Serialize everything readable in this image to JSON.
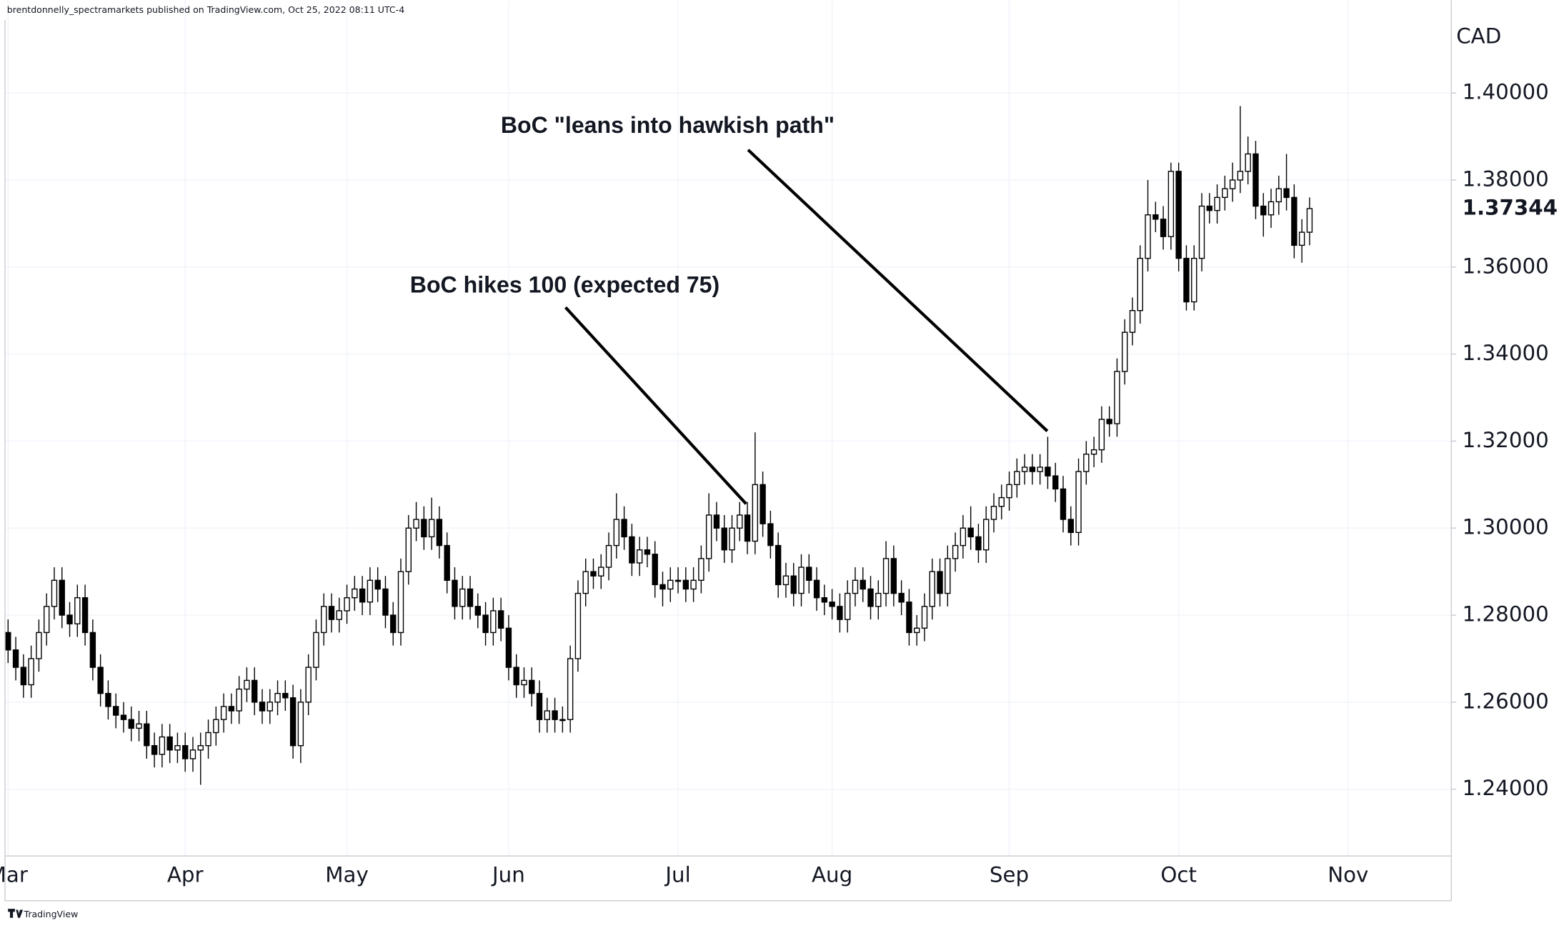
{
  "chart_data": {
    "type": "candlestick",
    "header": "brentdonnelly_spectramarkets published on TradingView.com, Oct 25, 2022 08:11 UTC-4",
    "footer": "TradingView",
    "currency_label": "CAD",
    "annotations": [
      "BoC hikes 100 (expected 75)",
      "BoC \"leans into hawkish path\""
    ],
    "up_color": "#ffffff",
    "down_color": "#000000",
    "grid": true,
    "xlim": [
      -0.4,
      187.4
    ],
    "xticks": [
      {
        "value": 0,
        "label": "Mar"
      },
      {
        "value": 23,
        "label": "Apr"
      },
      {
        "value": 44,
        "label": "May"
      },
      {
        "value": 65,
        "label": "Jun"
      },
      {
        "value": 87,
        "label": "Jul"
      },
      {
        "value": 107,
        "label": "Aug"
      },
      {
        "value": 130,
        "label": "Sep"
      },
      {
        "value": 152,
        "label": "Oct"
      },
      {
        "value": 174,
        "label": "Nov"
      }
    ],
    "ylim": [
      1.22465,
      1.42132
    ],
    "yticks": [
      {
        "value": 1.24,
        "label": "1.24000"
      },
      {
        "value": 1.26,
        "label": "1.26000"
      },
      {
        "value": 1.28,
        "label": "1.28000"
      },
      {
        "value": 1.3,
        "label": "1.30000"
      },
      {
        "value": 1.32,
        "label": "1.32000"
      },
      {
        "value": 1.34,
        "label": "1.34000"
      },
      {
        "value": 1.36,
        "label": "1.36000"
      },
      {
        "value": 1.38,
        "label": "1.38000"
      },
      {
        "value": 1.4,
        "label": "1.40000"
      }
    ],
    "last_price": 1.37344,
    "open": [
      1.276,
      1.272,
      1.268,
      1.264,
      1.27,
      1.276,
      1.282,
      1.288,
      1.28,
      1.278,
      1.284,
      1.276,
      1.268,
      1.262,
      1.259,
      1.257,
      1.256,
      1.254,
      1.255,
      1.25,
      1.248,
      1.252,
      1.249,
      1.25,
      1.247,
      1.249,
      1.25,
      1.253,
      1.256,
      1.259,
      1.258,
      1.263,
      1.265,
      1.26,
      1.258,
      1.26,
      1.262,
      1.261,
      1.25,
      1.26,
      1.268,
      1.276,
      1.282,
      1.279,
      1.281,
      1.284,
      1.286,
      1.283,
      1.288,
      1.286,
      1.28,
      1.276,
      1.29,
      1.3,
      1.302,
      1.298,
      1.302,
      1.296,
      1.288,
      1.282,
      1.286,
      1.282,
      1.28,
      1.276,
      1.281,
      1.277,
      1.268,
      1.264,
      1.265,
      1.262,
      1.256,
      1.258,
      1.256,
      1.256,
      1.27,
      1.285,
      1.29,
      1.289,
      1.291,
      1.296,
      1.302,
      1.298,
      1.292,
      1.295,
      1.294,
      1.287,
      1.286,
      1.288,
      1.288,
      1.286,
      1.288,
      1.293,
      1.303,
      1.3,
      1.295,
      1.3,
      1.303,
      1.297,
      1.31,
      1.301,
      1.296,
      1.287,
      1.289,
      1.285,
      1.291,
      1.288,
      1.284,
      1.283,
      1.282,
      1.279,
      1.285,
      1.288,
      1.286,
      1.282,
      1.285,
      1.293,
      1.285,
      1.283,
      1.276,
      1.277,
      1.282,
      1.29,
      1.285,
      1.293,
      1.296,
      1.3,
      1.298,
      1.295,
      1.302,
      1.305,
      1.307,
      1.31,
      1.313,
      1.314,
      1.313,
      1.314,
      1.312,
      1.309,
      1.302,
      1.299,
      1.313,
      1.317,
      1.318,
      1.325,
      1.324,
      1.336,
      1.345,
      1.35,
      1.362,
      1.372,
      1.371,
      1.367,
      1.382,
      1.362,
      1.352,
      1.362,
      1.374,
      1.373,
      1.376,
      1.378,
      1.38,
      1.382,
      1.386,
      1.374,
      1.372,
      1.375,
      1.378,
      1.376,
      1.365,
      1.368
    ],
    "high": [
      1.279,
      1.275,
      1.271,
      1.273,
      1.279,
      1.285,
      1.291,
      1.291,
      1.283,
      1.287,
      1.287,
      1.279,
      1.271,
      1.265,
      1.262,
      1.26,
      1.259,
      1.258,
      1.258,
      1.253,
      1.255,
      1.255,
      1.253,
      1.253,
      1.252,
      1.253,
      1.256,
      1.259,
      1.262,
      1.262,
      1.266,
      1.268,
      1.268,
      1.263,
      1.263,
      1.265,
      1.265,
      1.264,
      1.263,
      1.271,
      1.279,
      1.285,
      1.285,
      1.284,
      1.287,
      1.289,
      1.289,
      1.291,
      1.291,
      1.289,
      1.283,
      1.293,
      1.303,
      1.306,
      1.305,
      1.307,
      1.305,
      1.299,
      1.291,
      1.289,
      1.289,
      1.285,
      1.283,
      1.284,
      1.284,
      1.28,
      1.271,
      1.268,
      1.268,
      1.265,
      1.261,
      1.261,
      1.259,
      1.273,
      1.288,
      1.293,
      1.293,
      1.294,
      1.299,
      1.308,
      1.305,
      1.301,
      1.298,
      1.298,
      1.297,
      1.29,
      1.291,
      1.291,
      1.291,
      1.291,
      1.296,
      1.308,
      1.306,
      1.303,
      1.303,
      1.306,
      1.306,
      1.322,
      1.313,
      1.304,
      1.299,
      1.292,
      1.292,
      1.294,
      1.294,
      1.291,
      1.287,
      1.286,
      1.285,
      1.288,
      1.291,
      1.291,
      1.289,
      1.288,
      1.297,
      1.296,
      1.288,
      1.286,
      1.28,
      1.285,
      1.293,
      1.293,
      1.296,
      1.299,
      1.303,
      1.305,
      1.301,
      1.305,
      1.308,
      1.31,
      1.313,
      1.316,
      1.317,
      1.317,
      1.317,
      1.321,
      1.315,
      1.312,
      1.305,
      1.316,
      1.32,
      1.321,
      1.328,
      1.328,
      1.339,
      1.348,
      1.353,
      1.365,
      1.38,
      1.375,
      1.374,
      1.384,
      1.384,
      1.365,
      1.365,
      1.377,
      1.377,
      1.379,
      1.381,
      1.384,
      1.397,
      1.39,
      1.389,
      1.377,
      1.378,
      1.381,
      1.386,
      1.379,
      1.371,
      1.376
    ],
    "low": [
      1.269,
      1.265,
      1.261,
      1.261,
      1.267,
      1.273,
      1.279,
      1.277,
      1.275,
      1.275,
      1.273,
      1.265,
      1.259,
      1.256,
      1.254,
      1.253,
      1.251,
      1.251,
      1.247,
      1.245,
      1.245,
      1.246,
      1.246,
      1.244,
      1.244,
      1.241,
      1.247,
      1.25,
      1.253,
      1.255,
      1.255,
      1.26,
      1.257,
      1.255,
      1.255,
      1.257,
      1.258,
      1.247,
      1.246,
      1.257,
      1.265,
      1.273,
      1.276,
      1.276,
      1.278,
      1.281,
      1.28,
      1.28,
      1.283,
      1.277,
      1.273,
      1.273,
      1.287,
      1.297,
      1.295,
      1.295,
      1.293,
      1.285,
      1.279,
      1.279,
      1.279,
      1.277,
      1.273,
      1.273,
      1.274,
      1.265,
      1.261,
      1.261,
      1.259,
      1.253,
      1.253,
      1.253,
      1.253,
      1.253,
      1.267,
      1.282,
      1.286,
      1.286,
      1.288,
      1.293,
      1.295,
      1.289,
      1.289,
      1.291,
      1.284,
      1.282,
      1.283,
      1.285,
      1.283,
      1.283,
      1.285,
      1.29,
      1.297,
      1.292,
      1.292,
      1.297,
      1.294,
      1.294,
      1.298,
      1.293,
      1.284,
      1.284,
      1.282,
      1.282,
      1.285,
      1.281,
      1.28,
      1.279,
      1.276,
      1.276,
      1.282,
      1.283,
      1.279,
      1.279,
      1.282,
      1.282,
      1.28,
      1.273,
      1.273,
      1.274,
      1.279,
      1.282,
      1.282,
      1.29,
      1.293,
      1.295,
      1.292,
      1.292,
      1.299,
      1.302,
      1.304,
      1.307,
      1.31,
      1.31,
      1.31,
      1.309,
      1.306,
      1.299,
      1.296,
      1.296,
      1.31,
      1.314,
      1.315,
      1.321,
      1.321,
      1.333,
      1.342,
      1.347,
      1.359,
      1.368,
      1.364,
      1.364,
      1.359,
      1.35,
      1.35,
      1.359,
      1.37,
      1.37,
      1.373,
      1.375,
      1.377,
      1.379,
      1.371,
      1.367,
      1.369,
      1.372,
      1.373,
      1.362,
      1.361,
      1.365
    ],
    "close": [
      1.272,
      1.268,
      1.264,
      1.27,
      1.276,
      1.282,
      1.288,
      1.28,
      1.278,
      1.284,
      1.276,
      1.268,
      1.262,
      1.259,
      1.257,
      1.256,
      1.254,
      1.255,
      1.25,
      1.248,
      1.252,
      1.249,
      1.25,
      1.247,
      1.249,
      1.25,
      1.253,
      1.256,
      1.259,
      1.258,
      1.263,
      1.265,
      1.26,
      1.258,
      1.26,
      1.262,
      1.261,
      1.25,
      1.26,
      1.268,
      1.276,
      1.282,
      1.279,
      1.281,
      1.284,
      1.286,
      1.283,
      1.288,
      1.286,
      1.28,
      1.276,
      1.29,
      1.3,
      1.302,
      1.298,
      1.302,
      1.296,
      1.288,
      1.282,
      1.286,
      1.282,
      1.28,
      1.276,
      1.281,
      1.277,
      1.268,
      1.264,
      1.265,
      1.262,
      1.256,
      1.258,
      1.256,
      1.256,
      1.27,
      1.285,
      1.29,
      1.289,
      1.291,
      1.296,
      1.302,
      1.298,
      1.292,
      1.295,
      1.294,
      1.287,
      1.286,
      1.288,
      1.288,
      1.286,
      1.288,
      1.293,
      1.303,
      1.3,
      1.295,
      1.3,
      1.303,
      1.297,
      1.31,
      1.301,
      1.296,
      1.287,
      1.289,
      1.285,
      1.291,
      1.288,
      1.284,
      1.283,
      1.282,
      1.279,
      1.285,
      1.288,
      1.286,
      1.282,
      1.285,
      1.293,
      1.285,
      1.283,
      1.276,
      1.277,
      1.282,
      1.29,
      1.285,
      1.293,
      1.296,
      1.3,
      1.298,
      1.295,
      1.302,
      1.305,
      1.307,
      1.31,
      1.313,
      1.314,
      1.313,
      1.314,
      1.312,
      1.309,
      1.302,
      1.299,
      1.313,
      1.317,
      1.318,
      1.325,
      1.324,
      1.336,
      1.345,
      1.35,
      1.362,
      1.372,
      1.371,
      1.367,
      1.382,
      1.362,
      1.352,
      1.362,
      1.374,
      1.373,
      1.376,
      1.378,
      1.38,
      1.382,
      1.386,
      1.374,
      1.372,
      1.375,
      1.378,
      1.376,
      1.365,
      1.368,
      1.37344
    ]
  }
}
